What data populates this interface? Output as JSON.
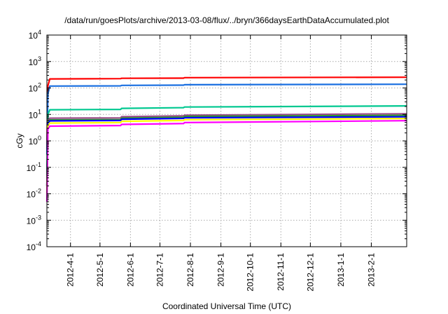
{
  "chart_data": {
    "type": "line",
    "title": "/data/run/goesPlots/archive/2013-03-08/flux/../bryn/366daysEarthDataAccumulated.plot",
    "xlabel": "Coordinated Universal Time (UTC)",
    "ylabel": "cGy",
    "yscale": "log",
    "ylim": [
      0.0001,
      10000
    ],
    "xlim": [
      "2012-03-08",
      "2013-03-09"
    ],
    "grid": true,
    "legend": "none",
    "yticks": [
      {
        "base": "10",
        "exp": "4",
        "value": 10000
      },
      {
        "base": "10",
        "exp": "3",
        "value": 1000
      },
      {
        "base": "10",
        "exp": "2",
        "value": 100
      },
      {
        "base": "10",
        "exp": "1",
        "value": 10
      },
      {
        "base": "10",
        "exp": "0",
        "value": 1
      },
      {
        "base": "10",
        "exp": "-1",
        "value": 0.1
      },
      {
        "base": "10",
        "exp": "-2",
        "value": 0.01
      },
      {
        "base": "10",
        "exp": "-3",
        "value": 0.001
      },
      {
        "base": "10",
        "exp": "-4",
        "value": 0.0001
      }
    ],
    "xticks": [
      {
        "label": "2012-4-1",
        "date": "2012-04-01"
      },
      {
        "label": "2012-5-1",
        "date": "2012-05-01"
      },
      {
        "label": "2012-6-1",
        "date": "2012-06-01"
      },
      {
        "label": "2012-7-1",
        "date": "2012-07-01"
      },
      {
        "label": "2012-8-1",
        "date": "2012-08-01"
      },
      {
        "label": "2012-9-1",
        "date": "2012-09-01"
      },
      {
        "label": "2012-10-1",
        "date": "2012-10-01"
      },
      {
        "label": "2012-11-1",
        "date": "2012-11-01"
      },
      {
        "label": "2012-12-1",
        "date": "2012-12-01"
      },
      {
        "label": "2013-1-1",
        "date": "2013-01-01"
      },
      {
        "label": "2013-2-1",
        "date": "2013-02-01"
      }
    ],
    "series": [
      {
        "name": "red",
        "color": "#ff0000",
        "points": [
          [
            "2012-03-08",
            0.5
          ],
          [
            "2012-03-09",
            120
          ],
          [
            "2012-03-11",
            220
          ],
          [
            "2012-05-22",
            225
          ],
          [
            "2012-05-23",
            232
          ],
          [
            "2012-07-25",
            235
          ],
          [
            "2012-07-26",
            245
          ],
          [
            "2013-03-09",
            255
          ]
        ]
      },
      {
        "name": "blue",
        "color": "#1a6fe0",
        "points": [
          [
            "2012-03-08",
            0.3
          ],
          [
            "2012-03-09",
            60
          ],
          [
            "2012-03-11",
            118
          ],
          [
            "2012-05-22",
            120
          ],
          [
            "2012-05-23",
            125
          ],
          [
            "2012-07-25",
            128
          ],
          [
            "2012-07-26",
            132
          ],
          [
            "2013-03-09",
            138
          ]
        ]
      },
      {
        "name": "teal",
        "color": "#00c890",
        "points": [
          [
            "2012-03-08",
            0.05
          ],
          [
            "2012-03-09",
            10
          ],
          [
            "2012-03-11",
            15
          ],
          [
            "2012-05-22",
            15.5
          ],
          [
            "2012-05-23",
            17
          ],
          [
            "2012-07-25",
            18
          ],
          [
            "2012-07-26",
            19
          ],
          [
            "2013-03-09",
            21
          ]
        ]
      },
      {
        "name": "purple",
        "color": "#9a4a8a",
        "points": [
          [
            "2012-03-08",
            0.02
          ],
          [
            "2012-03-09",
            6
          ],
          [
            "2012-03-11",
            7.2
          ],
          [
            "2012-05-22",
            7.4
          ],
          [
            "2012-05-23",
            8.2
          ],
          [
            "2012-07-25",
            8.8
          ],
          [
            "2012-07-26",
            9.4
          ],
          [
            "2013-03-09",
            10.6
          ]
        ]
      },
      {
        "name": "green",
        "color": "#2a9a2a",
        "points": [
          [
            "2012-03-08",
            0.02
          ],
          [
            "2012-03-09",
            5
          ],
          [
            "2012-03-11",
            6.2
          ],
          [
            "2012-05-22",
            6.4
          ],
          [
            "2012-05-23",
            7.2
          ],
          [
            "2012-07-25",
            7.8
          ],
          [
            "2012-07-26",
            8.4
          ],
          [
            "2013-03-09",
            9.2
          ]
        ]
      },
      {
        "name": "dark-blue",
        "color": "#0000ff",
        "points": [
          [
            "2012-03-08",
            0.02
          ],
          [
            "2012-03-09",
            4.5
          ],
          [
            "2012-03-11",
            5.7
          ],
          [
            "2012-05-22",
            5.9
          ],
          [
            "2012-05-23",
            6.6
          ],
          [
            "2012-07-25",
            7.1
          ],
          [
            "2012-07-26",
            7.5
          ],
          [
            "2013-03-09",
            8.1
          ]
        ]
      },
      {
        "name": "yellow",
        "color": "#ffff00",
        "points": [
          [
            "2012-03-08",
            0.01
          ],
          [
            "2012-03-09",
            3.8
          ],
          [
            "2012-03-11",
            4.7
          ],
          [
            "2012-05-22",
            4.9
          ],
          [
            "2012-05-23",
            5.5
          ],
          [
            "2012-07-25",
            5.9
          ],
          [
            "2012-07-26",
            6.3
          ],
          [
            "2013-03-09",
            7.0
          ]
        ]
      },
      {
        "name": "magenta",
        "color": "#ff00ff",
        "points": [
          [
            "2012-03-08",
            0.005
          ],
          [
            "2012-03-09",
            2.8
          ],
          [
            "2012-03-11",
            3.6
          ],
          [
            "2012-05-22",
            3.8
          ],
          [
            "2012-05-23",
            4.2
          ],
          [
            "2012-07-25",
            4.5
          ],
          [
            "2012-07-26",
            4.9
          ],
          [
            "2013-03-09",
            5.8
          ]
        ]
      }
    ]
  }
}
